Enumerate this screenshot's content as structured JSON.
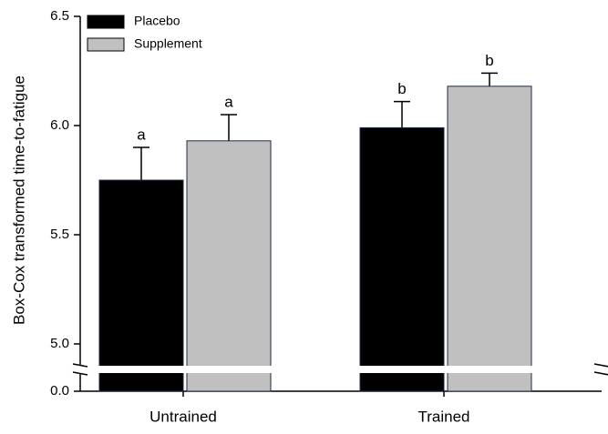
{
  "chart_data": {
    "type": "bar",
    "y_label": "Box-Cox transformed time-to-fatigue",
    "categories": [
      "Untrained",
      "Trained"
    ],
    "series": [
      {
        "name": "Placebo",
        "color": "#000000",
        "values": [
          5.75,
          5.99
        ],
        "errors": [
          0.15,
          0.12
        ],
        "letters": [
          "a",
          "b"
        ]
      },
      {
        "name": "Supplement",
        "color": "#c0c0c0",
        "values": [
          5.93,
          6.18
        ],
        "errors": [
          0.12,
          0.06
        ],
        "letters": [
          "a",
          "b"
        ]
      }
    ],
    "ylim": [
      0,
      6.5
    ],
    "ybreak": [
      0.1,
      4.9
    ],
    "yticks": [
      {
        "value": 0,
        "label": "0.0"
      },
      {
        "value": 5,
        "label": "5.0"
      },
      5.5,
      {
        "value": 6,
        "label": "6.0"
      },
      6.5
    ],
    "grid": false,
    "legend": "top-left"
  }
}
